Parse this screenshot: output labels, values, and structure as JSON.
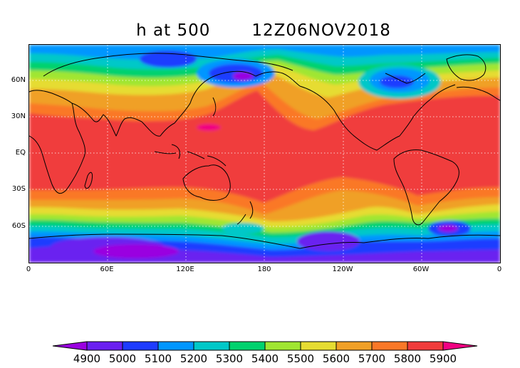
{
  "title": {
    "variable": "h at 500",
    "time": "12Z06NOV2018"
  },
  "map": {
    "lat_labels": [
      "60N",
      "30N",
      "EQ",
      "30S",
      "60S"
    ],
    "lon_labels": [
      "0",
      "60E",
      "120E",
      "180",
      "120W",
      "60W",
      "0"
    ],
    "field_range_m": [
      4900,
      5900
    ]
  },
  "colorbar": {
    "levels": [
      "4900",
      "5000",
      "5100",
      "5200",
      "5300",
      "5400",
      "5500",
      "5600",
      "5700",
      "5800",
      "5900"
    ],
    "colors": [
      "#9a00e0",
      "#6a20f0",
      "#1e3cff",
      "#0096ff",
      "#00c8c8",
      "#00d26e",
      "#a0e632",
      "#e6dc32",
      "#f0a028",
      "#fa7828",
      "#f03c3c",
      "#f00082"
    ]
  },
  "colors": {
    "frame": "#000000",
    "grid": "#ffffff",
    "coastline": "#000000"
  }
}
